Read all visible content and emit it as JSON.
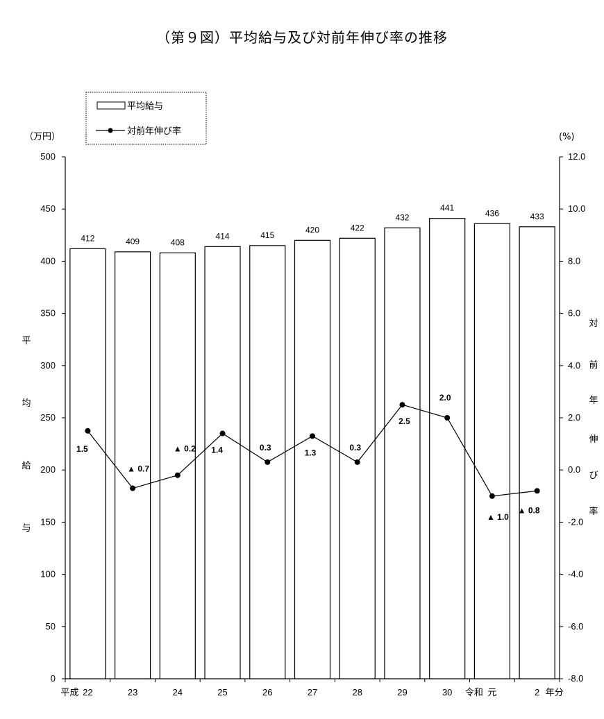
{
  "chart_data": {
    "type": "bar",
    "title": "（第９図）平均給与及び対前年伸び率の推移",
    "categories": [
      "22",
      "23",
      "24",
      "25",
      "26",
      "27",
      "28",
      "29",
      "30",
      "元",
      "2"
    ],
    "category_prefixes": {
      "0": "平成",
      "9": "令和"
    },
    "x_suffix": "年分",
    "series": [
      {
        "name": "平均給与",
        "type": "bar",
        "axis": "left",
        "values": [
          412,
          409,
          408,
          414,
          415,
          420,
          422,
          432,
          441,
          436,
          433
        ],
        "labels": [
          "412",
          "409",
          "408",
          "414",
          "415",
          "420",
          "422",
          "432",
          "441",
          "436",
          "433"
        ]
      },
      {
        "name": "対前年伸び率",
        "type": "line",
        "axis": "right",
        "values": [
          1.5,
          -0.7,
          -0.2,
          1.4,
          0.3,
          1.3,
          0.3,
          2.5,
          2.0,
          -1.0,
          -0.8
        ],
        "labels": [
          "1.5",
          "▲ 0.7",
          "▲ 0.2",
          "1.4",
          "0.3",
          "1.3",
          "0.3",
          "2.5",
          "2.0",
          "▲ 1.0",
          "▲ 0.8"
        ]
      }
    ],
    "y_left": {
      "unit": "（万円）",
      "label": "平均給与",
      "range": [
        0,
        500
      ],
      "ticks": [
        "0",
        "50",
        "100",
        "150",
        "200",
        "250",
        "300",
        "350",
        "400",
        "450",
        "500"
      ]
    },
    "y_right": {
      "unit": "(%)",
      "label": "対前年伸び率",
      "range": [
        -8.0,
        12.0
      ],
      "ticks": [
        "-8.0",
        "-6.0",
        "-4.0",
        "-2.0",
        "0.0",
        "2.0",
        "4.0",
        "6.0",
        "8.0",
        "10.0",
        "12.0"
      ]
    },
    "legend": {
      "placement": "top-left",
      "items": [
        "平均給与",
        "対前年伸び率"
      ]
    },
    "grid": false
  }
}
